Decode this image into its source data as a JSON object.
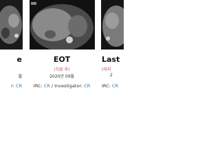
{
  "panels": [
    {
      "title": "e",
      "date": "월",
      "irc": [
        "r: ",
        "CR"
      ]
    },
    {
      "title": "EOT",
      "subtitle": "(치료 후)",
      "date": "2020년 09월",
      "irc": [
        "IRC: ",
        "CR",
        " / Investigator: ",
        "CR"
      ]
    },
    {
      "title": "Last",
      "subtitle": "(마지",
      "date": "2",
      "irc": [
        "IRC: ",
        "CR"
      ]
    }
  ]
}
